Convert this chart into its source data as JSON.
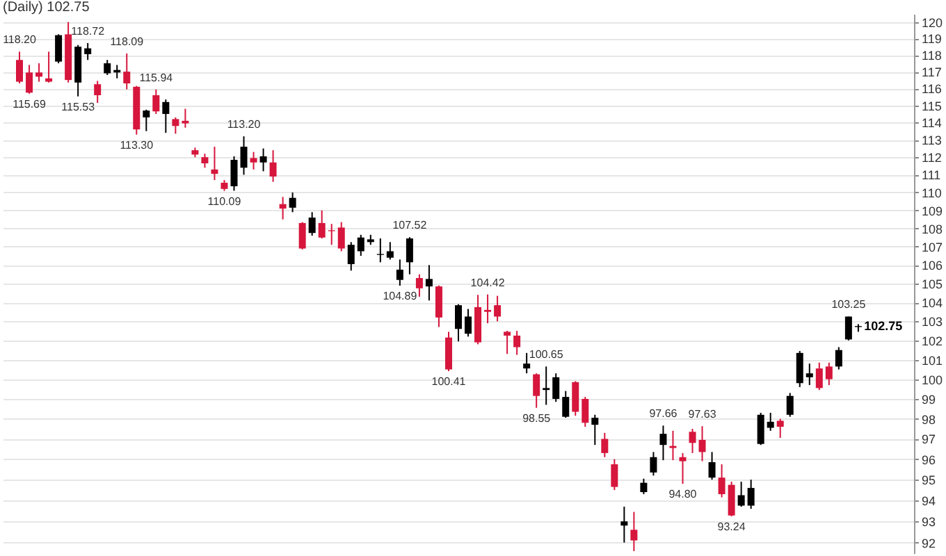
{
  "chart_data": {
    "type": "candlestick",
    "title": "(Daily) 102.75",
    "log": true,
    "grid": "y",
    "ylim": [
      91.5,
      120.5
    ],
    "yticks": [
      92,
      93,
      94,
      95,
      96,
      97,
      98,
      99,
      100,
      101,
      102,
      103,
      104,
      105,
      106,
      107,
      108,
      109,
      110,
      111,
      112,
      113,
      114,
      115,
      116,
      117,
      118,
      119,
      120
    ],
    "categories": [
      null,
      null,
      null,
      null,
      null,
      null,
      null,
      null,
      null,
      null,
      null,
      null,
      null,
      null,
      null,
      null,
      null,
      null,
      null,
      null,
      null,
      null,
      null,
      null,
      null,
      null,
      null,
      null,
      null,
      null,
      null,
      null,
      null,
      null,
      null,
      null,
      null,
      null,
      null,
      null,
      null,
      null,
      null,
      null,
      null,
      null,
      null,
      null,
      null,
      null,
      null,
      null,
      null,
      null,
      null,
      null,
      null,
      null,
      null,
      null,
      null,
      null,
      null,
      null,
      null,
      null,
      null,
      null,
      null,
      null,
      null,
      null,
      null,
      null,
      null,
      null,
      null,
      null,
      null,
      null,
      null,
      null,
      null,
      null,
      null,
      null,
      null
    ],
    "ohlc": [
      [
        117.7,
        118.2,
        116.3,
        116.4
      ],
      [
        116.95,
        117.4,
        115.69,
        115.75
      ],
      [
        116.95,
        117.5,
        116.4,
        116.7
      ],
      [
        116.6,
        118.2,
        116.35,
        116.4
      ],
      [
        117.6,
        119.25,
        117.5,
        119.2
      ],
      [
        119.25,
        120.0,
        116.35,
        116.5
      ],
      [
        116.35,
        118.6,
        115.53,
        118.5
      ],
      [
        118.05,
        118.72,
        117.7,
        118.4
      ],
      [
        116.25,
        116.45,
        115.15,
        115.6
      ],
      [
        116.9,
        117.7,
        116.8,
        117.5
      ],
      [
        116.95,
        117.4,
        116.6,
        117.1
      ],
      [
        117.0,
        118.09,
        115.95,
        116.3
      ],
      [
        116.1,
        116.15,
        113.3,
        113.6
      ],
      [
        114.3,
        114.75,
        113.5,
        114.7
      ],
      [
        115.6,
        115.94,
        114.5,
        114.65
      ],
      [
        114.5,
        115.35,
        113.4,
        115.2
      ],
      [
        114.2,
        114.3,
        113.35,
        113.8
      ],
      [
        114.1,
        114.8,
        113.7,
        113.95
      ],
      [
        112.4,
        112.55,
        112.0,
        112.15
      ],
      [
        112.0,
        112.2,
        111.4,
        111.65
      ],
      [
        111.3,
        112.6,
        110.7,
        111.05
      ],
      [
        110.55,
        110.7,
        110.09,
        110.2
      ],
      [
        110.35,
        112.05,
        110.1,
        111.85
      ],
      [
        111.4,
        113.2,
        111.0,
        112.6
      ],
      [
        111.95,
        112.3,
        111.3,
        111.7
      ],
      [
        111.7,
        112.5,
        111.2,
        112.05
      ],
      [
        111.7,
        112.4,
        110.6,
        110.9
      ],
      [
        109.35,
        109.75,
        108.5,
        109.1
      ],
      [
        109.15,
        110.0,
        108.9,
        109.7
      ],
      [
        108.3,
        108.35,
        106.85,
        106.9
      ],
      [
        107.75,
        108.9,
        107.6,
        108.6
      ],
      [
        108.3,
        109.0,
        107.45,
        107.5
      ],
      [
        107.9,
        108.25,
        107.1,
        107.85
      ],
      [
        108.05,
        108.35,
        106.75,
        106.9
      ],
      [
        106.05,
        107.25,
        105.7,
        107.1
      ],
      [
        106.75,
        107.65,
        106.5,
        107.5
      ],
      [
        107.25,
        107.65,
        107.1,
        107.4
      ],
      [
        106.55,
        107.45,
        106.15,
        106.6
      ],
      [
        106.4,
        107.25,
        106.3,
        106.75
      ],
      [
        105.2,
        106.3,
        104.89,
        105.75
      ],
      [
        106.15,
        107.52,
        105.5,
        107.45
      ],
      [
        105.3,
        105.5,
        104.3,
        104.75
      ],
      [
        104.85,
        106.0,
        104.1,
        105.25
      ],
      [
        104.85,
        104.9,
        102.7,
        103.2
      ],
      [
        102.15,
        102.45,
        100.41,
        100.5
      ],
      [
        102.6,
        103.9,
        101.95,
        103.85
      ],
      [
        102.35,
        103.65,
        102.2,
        103.25
      ],
      [
        103.75,
        104.4,
        101.8,
        101.9
      ],
      [
        103.6,
        104.42,
        102.9,
        103.5
      ],
      [
        103.85,
        104.35,
        103.0,
        103.25
      ],
      [
        102.45,
        102.5,
        101.3,
        102.25
      ],
      [
        102.25,
        102.5,
        101.25,
        101.65
      ],
      [
        100.55,
        101.35,
        100.3,
        100.8
      ],
      [
        100.25,
        100.3,
        98.55,
        99.15
      ],
      [
        99.45,
        100.65,
        98.7,
        99.55
      ],
      [
        99.0,
        100.3,
        98.85,
        100.1
      ],
      [
        98.1,
        99.4,
        98.05,
        99.1
      ],
      [
        99.85,
        99.9,
        98.15,
        98.35
      ],
      [
        99.0,
        99.1,
        97.6,
        97.8
      ],
      [
        97.7,
        98.2,
        96.7,
        98.05
      ],
      [
        97.0,
        97.3,
        96.1,
        96.3
      ],
      [
        95.75,
        96.0,
        94.5,
        94.65
      ],
      [
        92.8,
        93.7,
        92.0,
        93.0
      ],
      [
        92.6,
        93.45,
        91.6,
        92.1
      ],
      [
        94.4,
        95.05,
        94.3,
        94.85
      ],
      [
        95.35,
        96.35,
        95.2,
        96.1
      ],
      [
        96.7,
        97.66,
        95.95,
        97.25
      ],
      [
        96.65,
        97.4,
        95.95,
        96.55
      ],
      [
        96.1,
        96.3,
        94.8,
        95.9
      ],
      [
        97.35,
        97.5,
        96.3,
        96.8
      ],
      [
        96.95,
        97.63,
        95.9,
        96.35
      ],
      [
        95.1,
        96.35,
        95.0,
        95.85
      ],
      [
        95.1,
        95.75,
        94.15,
        94.3
      ],
      [
        94.75,
        94.9,
        93.24,
        93.28
      ],
      [
        93.75,
        94.9,
        93.7,
        94.25
      ],
      [
        93.75,
        95.0,
        93.6,
        94.6
      ],
      [
        96.75,
        98.3,
        96.7,
        98.2
      ],
      [
        97.55,
        98.3,
        97.4,
        97.85
      ],
      [
        97.9,
        98.0,
        97.05,
        97.6
      ],
      [
        98.2,
        99.3,
        98.1,
        99.15
      ],
      [
        99.8,
        101.45,
        99.6,
        101.35
      ],
      [
        100.1,
        100.8,
        99.7,
        100.3
      ],
      [
        100.55,
        100.85,
        99.45,
        99.55
      ],
      [
        100.65,
        100.85,
        99.7,
        100.0
      ],
      [
        100.65,
        101.65,
        100.5,
        101.5
      ],
      [
        102.05,
        103.25,
        102.0,
        103.25
      ],
      [
        102.7,
        102.85,
        102.45,
        102.75
      ]
    ],
    "colors": [
      "#d6163c",
      "#d6163c",
      "#d6163c",
      "#d6163c",
      "#000000",
      "#d6163c",
      "#000000",
      "#000000",
      "#d6163c",
      "#000000",
      "#000000",
      "#d6163c",
      "#d6163c",
      "#000000",
      "#d6163c",
      "#000000",
      "#d6163c",
      "#d6163c",
      "#d6163c",
      "#d6163c",
      "#d6163c",
      "#d6163c",
      "#000000",
      "#000000",
      "#d6163c",
      "#000000",
      "#d6163c",
      "#d6163c",
      "#000000",
      "#d6163c",
      "#000000",
      "#d6163c",
      "#d6163c",
      "#d6163c",
      "#000000",
      "#000000",
      "#000000",
      "#000000",
      "#000000",
      "#000000",
      "#000000",
      "#d6163c",
      "#000000",
      "#d6163c",
      "#d6163c",
      "#000000",
      "#000000",
      "#d6163c",
      "#d6163c",
      "#d6163c",
      "#d6163c",
      "#d6163c",
      "#000000",
      "#d6163c",
      "#000000",
      "#000000",
      "#000000",
      "#d6163c",
      "#d6163c",
      "#000000",
      "#d6163c",
      "#d6163c",
      "#000000",
      "#d6163c",
      "#000000",
      "#000000",
      "#000000",
      "#d6163c",
      "#d6163c",
      "#d6163c",
      "#d6163c",
      "#000000",
      "#d6163c",
      "#d6163c",
      "#000000",
      "#000000",
      "#000000",
      "#000000",
      "#d6163c",
      "#000000",
      "#000000",
      "#000000",
      "#d6163c",
      "#d6163c",
      "#000000",
      "#000000",
      "#000000"
    ],
    "annotations": [
      {
        "text": "118.20",
        "y": 118.2
      },
      {
        "text": "115.69",
        "y": 115.69
      },
      {
        "text": "118.72",
        "y": 118.72
      },
      {
        "text": "115.53",
        "y": 115.53
      },
      {
        "text": "118.09",
        "y": 118.09
      },
      {
        "text": "115.94",
        "y": 115.94
      },
      {
        "text": "113.30",
        "y": 113.3
      },
      {
        "text": "113.20",
        "y": 113.2
      },
      {
        "text": "110.09",
        "y": 110.09
      },
      {
        "text": "107.52",
        "y": 107.52
      },
      {
        "text": "104.89",
        "y": 104.89
      },
      {
        "text": "104.42",
        "y": 104.42
      },
      {
        "text": "100.41",
        "y": 100.41
      },
      {
        "text": "100.65",
        "y": 100.65
      },
      {
        "text": "98.55",
        "y": 98.55
      },
      {
        "text": "97.66",
        "y": 97.66
      },
      {
        "text": "94.80",
        "y": 94.8
      },
      {
        "text": "97.63",
        "y": 97.63
      },
      {
        "text": "93.24",
        "y": 93.24
      },
      {
        "text": "103.25",
        "y": 103.25
      },
      "102.75"
    ]
  }
}
